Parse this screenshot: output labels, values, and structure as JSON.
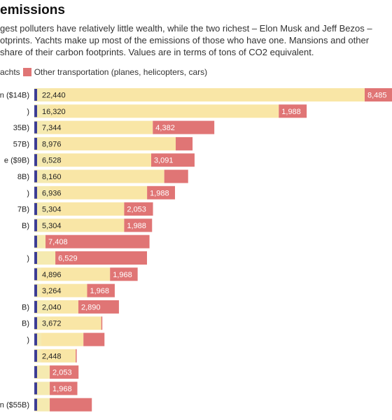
{
  "title": "emissions",
  "subtitle": [
    "gest polluters have relatively little wealth, while the two richest – Elon Musk and Jeff Bezos –",
    "otprints. Yachts make up most of the emissions of those who have one. Mansions and other",
    "share of their carbon footprints. Values are in terms of tons of CO2 equivalent."
  ],
  "colors": {
    "other": "#f5eab0",
    "yacht": "#f9e6a6",
    "transport": "#e07575",
    "mansion": "#3c3d94"
  },
  "chart_data": {
    "type": "bar",
    "stacked": true,
    "orientation": "horizontal",
    "legend": [
      {
        "key": "yacht",
        "label": "achts"
      },
      {
        "key": "transport",
        "label": "Other transportation (planes, helicopters, cars)"
      }
    ],
    "rows": [
      {
        "label": "n ($14B)",
        "m": 1100,
        "y": 22440,
        "t": 8485,
        "y_label": "22,440",
        "t_label": "8,485"
      },
      {
        "label": ")",
        "m": 1100,
        "y": 16320,
        "t": 1988,
        "y_label": "16,320",
        "t_label": "1,988"
      },
      {
        "label": "35B)",
        "m": 1100,
        "y": 7344,
        "t": 4382,
        "y_label": "7,344",
        "t_label": "4,382"
      },
      {
        "label": "57B)",
        "m": 1100,
        "y": 8976,
        "t": 1200,
        "y_label": "8,976",
        "t_label": ""
      },
      {
        "label": "e ($9B)",
        "m": 1800,
        "y": 6528,
        "t": 3091,
        "y_label": "6,528",
        "t_label": "3,091"
      },
      {
        "label": "8B)",
        "m": 1100,
        "y": 8160,
        "t": 1700,
        "y_label": "8,160",
        "t_label": ""
      },
      {
        "label": ")",
        "m": 1100,
        "y": 6936,
        "t": 1988,
        "y_label": "6,936",
        "t_label": "1,988"
      },
      {
        "label": "7B)",
        "m": 1100,
        "y": 5304,
        "t": 2053,
        "y_label": "5,304",
        "t_label": "2,053"
      },
      {
        "label": "B)",
        "m": 1100,
        "y": 5304,
        "t": 1988,
        "y_label": "5,304",
        "t_label": "1,988"
      },
      {
        "label": "",
        "m": 800,
        "y": 0,
        "t": 7408,
        "y_label": "",
        "t_label": "7,408"
      },
      {
        "label": ")",
        "m": 1500,
        "y": 0,
        "t": 6529,
        "y_label": "",
        "t_label": "6,529"
      },
      {
        "label": "",
        "m": 500,
        "y": 4896,
        "t": 1968,
        "y_label": "4,896",
        "t_label": "1,968"
      },
      {
        "label": "",
        "m": 500,
        "y": 3264,
        "t": 1968,
        "y_label": "3,264",
        "t_label": "1,968"
      },
      {
        "label": "B)",
        "m": 1100,
        "y": 2040,
        "t": 2890,
        "y_label": "2,040",
        "t_label": "2,890"
      },
      {
        "label": "B)",
        "m": 1100,
        "y": 3672,
        "t": 0,
        "y_label": "3,672",
        "t_label": ""
      },
      {
        "label": ")",
        "m": 500,
        "y": 3000,
        "t": 1500,
        "y_label": "",
        "t_label": ""
      },
      {
        "label": "",
        "m": 500,
        "y": 2448,
        "t": 0,
        "y_label": "2,448",
        "t_label": ""
      },
      {
        "label": "",
        "m": 1100,
        "y": 0,
        "t": 2053,
        "y_label": "",
        "t_label": "2,053"
      },
      {
        "label": "",
        "m": 1100,
        "y": 0,
        "t": 1968,
        "y_label": "",
        "t_label": "1,968"
      },
      {
        "label": "n ($55B)",
        "m": 1100,
        "y": 0,
        "t": 3000,
        "y_label": "",
        "t_label": ""
      }
    ]
  }
}
